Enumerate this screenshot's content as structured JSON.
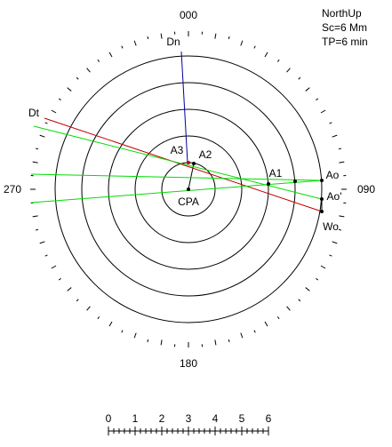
{
  "header": {
    "lines": [
      "NorthUp",
      "Sc=6 Mm",
      "TP=6 min"
    ]
  },
  "bearings": {
    "north": "000",
    "east": "090",
    "south": "180",
    "west": "270"
  },
  "points": {
    "dn": "Dn",
    "dt": "Dt",
    "a1": "A1",
    "a2": "A2",
    "a3": "A3",
    "ao": "Ao",
    "ao_prime": "Ao'",
    "wo": "Wo",
    "cpa": "CPA"
  },
  "scale": {
    "labels": [
      "0",
      "1",
      "2",
      "3",
      "4",
      "5",
      "6"
    ]
  }
}
